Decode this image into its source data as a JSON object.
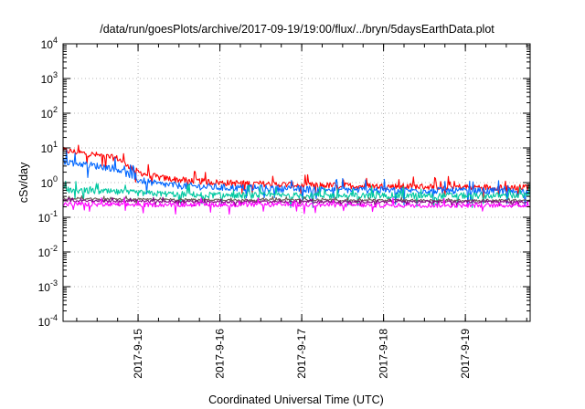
{
  "chart_data": {
    "type": "line",
    "title": "/data/run/goesPlots/archive/2017-09-19/19:00/flux/../bryn/5daysEarthData.plot",
    "xlabel": "Coordinated Universal Time (UTC)",
    "ylabel": "cSv/day",
    "y_scale": "log",
    "ylim": [
      0.0001,
      10000
    ],
    "y_ticks": [
      {
        "value": 0.0001,
        "base": "10",
        "exp": "-4"
      },
      {
        "value": 0.001,
        "base": "10",
        "exp": "-3"
      },
      {
        "value": 0.01,
        "base": "10",
        "exp": "-2"
      },
      {
        "value": 0.1,
        "base": "10",
        "exp": "-1"
      },
      {
        "value": 1,
        "base": "10",
        "exp": "0"
      },
      {
        "value": 10,
        "base": "10",
        "exp": "1"
      },
      {
        "value": 100,
        "base": "10",
        "exp": "2"
      },
      {
        "value": 1000,
        "base": "10",
        "exp": "3"
      },
      {
        "value": 10000,
        "base": "10",
        "exp": "4"
      }
    ],
    "x_range_days": [
      "2017-09-14 02:00",
      "2017-09-19 19:00"
    ],
    "x_ticks": [
      "2017-9-15",
      "2017-9-16",
      "2017-9-17",
      "2017-9-18",
      "2017-9-19"
    ],
    "grid": true,
    "legend": "none",
    "series": [
      {
        "color": "#ff0000",
        "noise": 0.18,
        "points": [
          [
            "2017-09-14 02:00",
            8.5
          ],
          [
            "2017-09-14 06:00",
            7.5
          ],
          [
            "2017-09-14 12:00",
            6.2
          ],
          [
            "2017-09-14 18:00",
            5.0
          ],
          [
            "2017-09-15 00:00",
            2.0
          ],
          [
            "2017-09-15 06:00",
            1.4
          ],
          [
            "2017-09-15 12:00",
            1.2
          ],
          [
            "2017-09-16 00:00",
            1.0
          ],
          [
            "2017-09-17 00:00",
            0.85
          ],
          [
            "2017-09-18 00:00",
            0.78
          ],
          [
            "2017-09-19 00:00",
            0.75
          ],
          [
            "2017-09-19 19:00",
            0.72
          ]
        ]
      },
      {
        "color": "#0066ff",
        "noise": 0.2,
        "points": [
          [
            "2017-09-14 02:00",
            4.2
          ],
          [
            "2017-09-14 06:00",
            3.6
          ],
          [
            "2017-09-14 12:00",
            3.0
          ],
          [
            "2017-09-14 18:00",
            2.5
          ],
          [
            "2017-09-15 00:00",
            1.2
          ],
          [
            "2017-09-15 06:00",
            0.9
          ],
          [
            "2017-09-15 12:00",
            0.82
          ],
          [
            "2017-09-16 00:00",
            0.72
          ],
          [
            "2017-09-17 00:00",
            0.65
          ],
          [
            "2017-09-18 00:00",
            0.6
          ],
          [
            "2017-09-19 00:00",
            0.58
          ],
          [
            "2017-09-19 19:00",
            0.55
          ]
        ]
      },
      {
        "color": "#00c8a0",
        "noise": 0.18,
        "points": [
          [
            "2017-09-14 02:00",
            0.62
          ],
          [
            "2017-09-14 12:00",
            0.56
          ],
          [
            "2017-09-15 00:00",
            0.5
          ],
          [
            "2017-09-15 12:00",
            0.46
          ],
          [
            "2017-09-16 00:00",
            0.43
          ],
          [
            "2017-09-17 00:00",
            0.42
          ],
          [
            "2017-09-18 00:00",
            0.42
          ],
          [
            "2017-09-19 00:00",
            0.42
          ],
          [
            "2017-09-19 19:00",
            0.42
          ]
        ]
      },
      {
        "color": "#6a5a55",
        "noise": 0.06,
        "points": [
          [
            "2017-09-14 02:00",
            0.34
          ],
          [
            "2017-09-15 00:00",
            0.33
          ],
          [
            "2017-09-16 00:00",
            0.32
          ],
          [
            "2017-09-17 00:00",
            0.32
          ],
          [
            "2017-09-18 00:00",
            0.31
          ],
          [
            "2017-09-19 00:00",
            0.31
          ],
          [
            "2017-09-19 19:00",
            0.31
          ]
        ]
      },
      {
        "color": "#800080",
        "noise": 0.07,
        "points": [
          [
            "2017-09-14 02:00",
            0.3
          ],
          [
            "2017-09-15 00:00",
            0.29
          ],
          [
            "2017-09-16 00:00",
            0.28
          ],
          [
            "2017-09-17 00:00",
            0.28
          ],
          [
            "2017-09-18 00:00",
            0.28
          ],
          [
            "2017-09-19 00:00",
            0.28
          ],
          [
            "2017-09-19 19:00",
            0.28
          ]
        ]
      },
      {
        "color": "#ff00ff",
        "noise": 0.13,
        "points": [
          [
            "2017-09-14 02:00",
            0.24
          ],
          [
            "2017-09-15 00:00",
            0.23
          ],
          [
            "2017-09-16 00:00",
            0.23
          ],
          [
            "2017-09-17 00:00",
            0.23
          ],
          [
            "2017-09-18 00:00",
            0.22
          ],
          [
            "2017-09-19 00:00",
            0.22
          ],
          [
            "2017-09-19 19:00",
            0.22
          ]
        ]
      }
    ]
  }
}
